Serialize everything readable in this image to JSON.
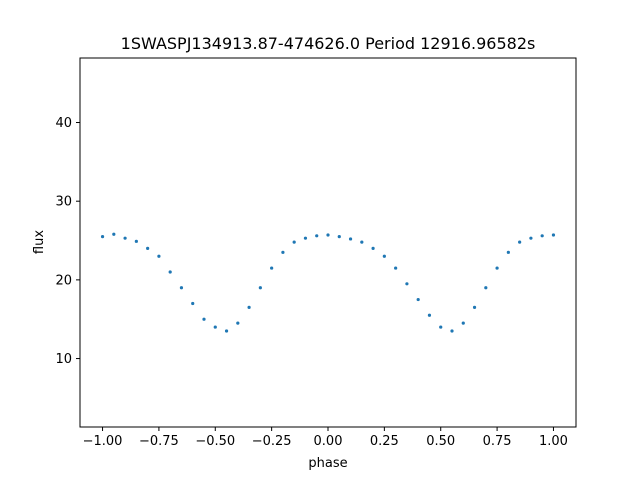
{
  "chart_data": {
    "type": "scatter",
    "title": "1SWASPJ134913.87-474626.0 Period 12916.96582s",
    "xlabel": "phase",
    "ylabel": "flux",
    "xlim": [
      -1.1,
      1.1
    ],
    "ylim": [
      1.3,
      48.2
    ],
    "xticks": [
      -1.0,
      -0.75,
      -0.5,
      -0.25,
      0.0,
      0.25,
      0.5,
      0.75,
      1.0
    ],
    "xtick_labels": [
      "−1.00",
      "−0.75",
      "−0.50",
      "−0.25",
      "0.00",
      "0.25",
      "0.50",
      "0.75",
      "1.00"
    ],
    "yticks": [
      10,
      20,
      30,
      40
    ],
    "yticks_labels": [
      "10",
      "20",
      "30",
      "40"
    ],
    "grid": false,
    "marker_color": "#1f77b4",
    "series": [
      {
        "description": "light curve folded over two cycles",
        "points": [
          [
            -1.0,
            25.5
          ],
          [
            -0.95,
            25.8
          ],
          [
            -0.9,
            25.3
          ],
          [
            -0.85,
            24.9
          ],
          [
            -0.8,
            24.0
          ],
          [
            -0.75,
            23.0
          ],
          [
            -0.7,
            21.0
          ],
          [
            -0.65,
            19.0
          ],
          [
            -0.6,
            17.0
          ],
          [
            -0.55,
            15.0
          ],
          [
            -0.5,
            14.0
          ],
          [
            -0.45,
            13.5
          ],
          [
            -0.4,
            14.5
          ],
          [
            -0.35,
            16.5
          ],
          [
            -0.3,
            19.0
          ],
          [
            -0.25,
            21.5
          ],
          [
            -0.2,
            23.5
          ],
          [
            -0.15,
            24.8
          ],
          [
            -0.1,
            25.3
          ],
          [
            -0.05,
            25.6
          ],
          [
            0.0,
            25.7
          ],
          [
            0.05,
            25.5
          ],
          [
            0.1,
            25.2
          ],
          [
            0.15,
            24.8
          ],
          [
            0.2,
            24.0
          ],
          [
            0.25,
            23.0
          ],
          [
            0.3,
            21.5
          ],
          [
            0.35,
            19.5
          ],
          [
            0.4,
            17.5
          ],
          [
            0.45,
            15.5
          ],
          [
            0.5,
            14.0
          ],
          [
            0.55,
            13.5
          ],
          [
            0.6,
            14.5
          ],
          [
            0.65,
            16.5
          ],
          [
            0.7,
            19.0
          ],
          [
            0.75,
            21.5
          ],
          [
            0.8,
            23.5
          ],
          [
            0.85,
            24.8
          ],
          [
            0.9,
            25.3
          ],
          [
            0.95,
            25.6
          ],
          [
            1.0,
            25.7
          ]
        ]
      }
    ]
  }
}
